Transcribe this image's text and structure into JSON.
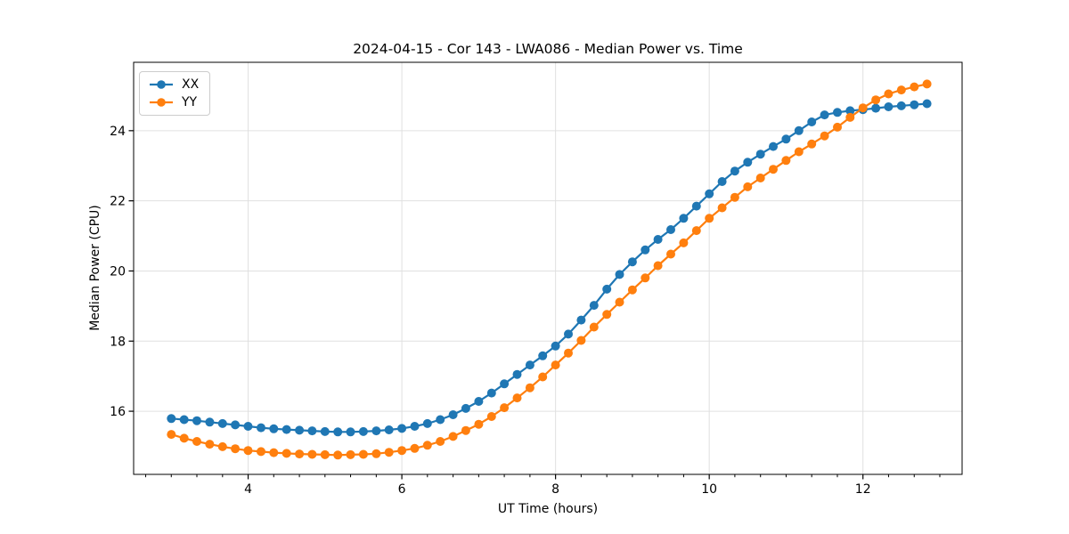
{
  "chart_data": {
    "type": "line",
    "title": "2024-04-15 - Cor 143 - LWA086 - Median Power vs. Time",
    "xlabel": "UT Time (hours)",
    "ylabel": "Median Power (CPU)",
    "xlim": [
      2.51,
      13.29
    ],
    "ylim": [
      14.2,
      25.95
    ],
    "grid": true,
    "legend_position": "upper-left",
    "x_major_ticks": [
      4,
      6,
      8,
      10,
      12
    ],
    "x_minor_ticks": [
      2.667,
      3.0,
      3.333,
      3.667,
      4.333,
      4.667,
      5.0,
      5.333,
      5.667,
      6.333,
      6.667,
      7.0,
      7.333,
      7.667,
      8.333,
      8.667,
      9.0,
      9.333,
      9.667,
      10.333,
      10.667,
      11.0,
      11.333,
      11.667,
      12.333,
      12.667,
      13.0
    ],
    "y_major_ticks": [
      16,
      18,
      20,
      22,
      24
    ],
    "x": [
      3.0,
      3.167,
      3.333,
      3.5,
      3.667,
      3.833,
      4.0,
      4.167,
      4.333,
      4.5,
      4.667,
      4.833,
      5.0,
      5.167,
      5.333,
      5.5,
      5.667,
      5.833,
      6.0,
      6.167,
      6.333,
      6.5,
      6.667,
      6.833,
      7.0,
      7.167,
      7.333,
      7.5,
      7.667,
      7.833,
      8.0,
      8.167,
      8.333,
      8.5,
      8.667,
      8.833,
      9.0,
      9.167,
      9.333,
      9.5,
      9.667,
      9.833,
      10.0,
      10.167,
      10.333,
      10.5,
      10.667,
      10.833,
      11.0,
      11.167,
      11.333,
      11.5,
      11.667,
      11.833,
      12.0,
      12.167,
      12.333,
      12.5,
      12.667,
      12.833
    ],
    "series": [
      {
        "name": "XX",
        "color": "#1f77b4",
        "values": [
          15.79,
          15.76,
          15.73,
          15.69,
          15.65,
          15.61,
          15.57,
          15.53,
          15.5,
          15.48,
          15.46,
          15.44,
          15.42,
          15.41,
          15.41,
          15.42,
          15.44,
          15.47,
          15.51,
          15.57,
          15.65,
          15.76,
          15.9,
          16.08,
          16.28,
          16.52,
          16.78,
          17.05,
          17.32,
          17.58,
          17.86,
          18.2,
          18.6,
          19.02,
          19.48,
          19.9,
          20.26,
          20.6,
          20.9,
          21.18,
          21.5,
          21.85,
          22.2,
          22.55,
          22.85,
          23.1,
          23.33,
          23.55,
          23.76,
          24.0,
          24.25,
          24.45,
          24.52,
          24.57,
          24.6,
          24.64,
          24.68,
          24.71,
          24.74,
          24.77
        ]
      },
      {
        "name": "YY",
        "color": "#ff7f0e",
        "values": [
          15.34,
          15.23,
          15.14,
          15.06,
          14.99,
          14.93,
          14.88,
          14.85,
          14.82,
          14.8,
          14.78,
          14.77,
          14.76,
          14.75,
          14.76,
          14.77,
          14.79,
          14.83,
          14.88,
          14.94,
          15.03,
          15.14,
          15.28,
          15.45,
          15.63,
          15.85,
          16.1,
          16.38,
          16.67,
          16.98,
          17.32,
          17.66,
          18.02,
          18.4,
          18.76,
          19.11,
          19.46,
          19.8,
          20.15,
          20.48,
          20.8,
          21.15,
          21.5,
          21.8,
          22.1,
          22.4,
          22.65,
          22.9,
          23.15,
          23.4,
          23.62,
          23.85,
          24.1,
          24.38,
          24.65,
          24.88,
          25.05,
          25.16,
          25.25,
          25.33
        ]
      }
    ],
    "colors": {
      "grid": "#e0e0e0",
      "spine": "#000000",
      "tick": "#000000",
      "text": "#000000",
      "background": "#ffffff"
    }
  }
}
